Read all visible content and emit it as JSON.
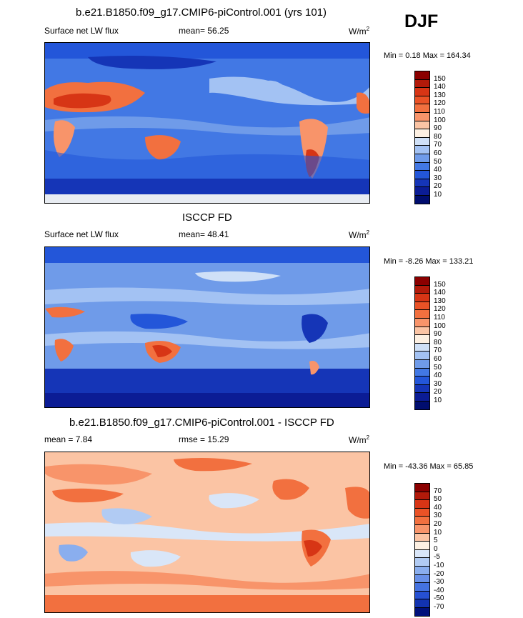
{
  "season": "DJF",
  "panels": [
    {
      "title": "b.e21.B1850.f09_g17.CMIP6-piControl.001 (yrs 101)",
      "left_label": "Surface net LW flux",
      "center_label": "mean=  56.25",
      "right_label": "W/m",
      "right_label_sup": "2",
      "minmax": "Min =   0.18 Max = 164.34",
      "colorbar": {
        "levels": [
          "150",
          "140",
          "130",
          "120",
          "110",
          "100",
          "90",
          "80",
          "70",
          "60",
          "50",
          "40",
          "30",
          "20",
          "10"
        ],
        "colors": [
          "#8b0000",
          "#b21a0a",
          "#d73515",
          "#ea5226",
          "#f2703f",
          "#f8946a",
          "#fbc4a4",
          "#fdf0e2",
          "#cfe0f7",
          "#a3c2f3",
          "#6f9be9",
          "#4278e4",
          "#2356d9",
          "#1535b7",
          "#0b1c95",
          "#000d6e"
        ]
      }
    },
    {
      "title": "ISCCP FD",
      "left_label": "Surface net LW flux",
      "center_label": "mean=  48.41",
      "right_label": "W/m",
      "right_label_sup": "2",
      "minmax": "Min =  -8.26 Max = 133.21",
      "colorbar": {
        "levels": [
          "150",
          "140",
          "130",
          "120",
          "110",
          "100",
          "90",
          "80",
          "70",
          "60",
          "50",
          "40",
          "30",
          "20",
          "10"
        ],
        "colors": [
          "#8b0000",
          "#b21a0a",
          "#d73515",
          "#ea5226",
          "#f2703f",
          "#f8946a",
          "#fbc4a4",
          "#fdf0e2",
          "#cfe0f7",
          "#a3c2f3",
          "#6f9be9",
          "#4278e4",
          "#2356d9",
          "#1535b7",
          "#0b1c95",
          "#000d6e"
        ]
      }
    },
    {
      "title": "b.e21.B1850.f09_g17.CMIP6-piControl.001 - ISCCP FD",
      "left_label": "mean =   7.84",
      "center_label": "rmse =  15.29",
      "right_label": "W/m",
      "right_label_sup": "2",
      "minmax": "Min = -43.36 Max =  65.85",
      "colorbar": {
        "levels": [
          "70",
          "50",
          "40",
          "30",
          "20",
          "10",
          "5",
          "0",
          "-5",
          "-10",
          "-20",
          "-30",
          "-40",
          "-50",
          "-70"
        ],
        "colors": [
          "#8b0000",
          "#b21a0a",
          "#d73515",
          "#ea5226",
          "#f2703f",
          "#f8946a",
          "#fbc4a4",
          "#fdf0e2",
          "#d9e6f8",
          "#b1cbf3",
          "#8aaeee",
          "#6890e8",
          "#4472e0",
          "#2650d2",
          "#1233b0",
          "#00107a"
        ]
      }
    }
  ]
}
